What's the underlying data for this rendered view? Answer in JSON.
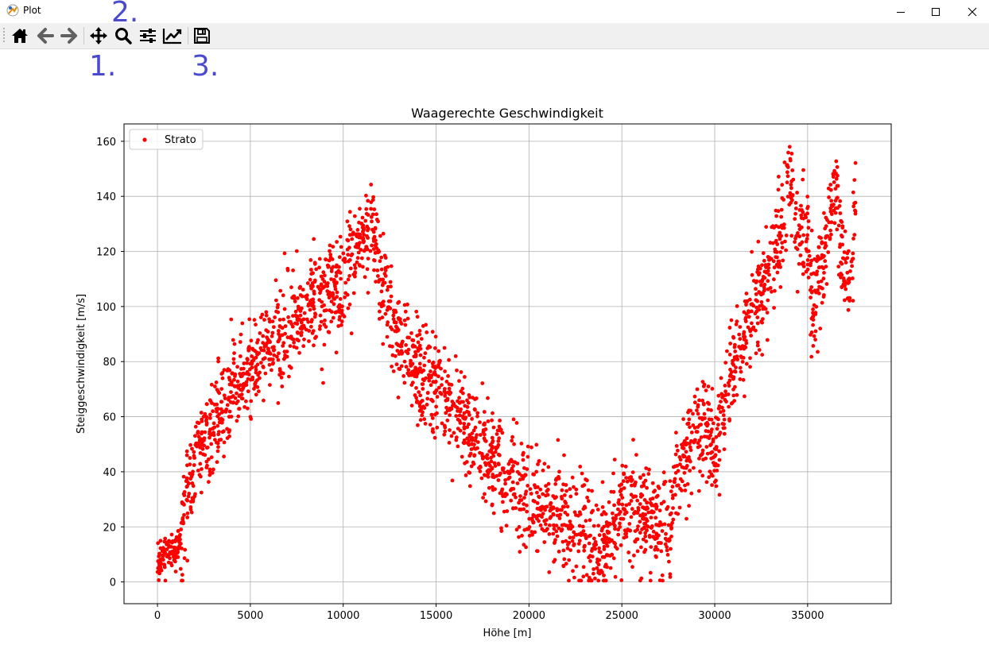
{
  "window": {
    "title": "Plot"
  },
  "toolbar": {
    "buttons": [
      {
        "name": "home-icon"
      },
      {
        "name": "back-arrow-icon"
      },
      {
        "name": "forward-arrow-icon"
      },
      {
        "name": "pan-move-icon"
      },
      {
        "name": "zoom-magnifier-icon"
      },
      {
        "name": "configure-subplots-icon"
      },
      {
        "name": "edit-axis-curve-icon"
      },
      {
        "name": "save-floppy-icon"
      }
    ]
  },
  "annotations": {
    "a1": "1.",
    "a2": "2.",
    "a3": "3."
  },
  "colors": {
    "marker": "#ff0000",
    "grid": "#b0b0b0",
    "annotation": "#4a4acf"
  },
  "chart_data": {
    "type": "scatter",
    "title": "Waagerechte Geschwindigkeit",
    "xlabel": "Höhe [m]",
    "ylabel": "Steiggeschwindigkeit [m/s]",
    "xlim": [
      -1800,
      39500
    ],
    "ylim": [
      -7.9,
      166.3
    ],
    "xticks": [
      0,
      5000,
      10000,
      15000,
      20000,
      25000,
      30000,
      35000
    ],
    "yticks": [
      0,
      20,
      40,
      60,
      80,
      100,
      120,
      140,
      160
    ],
    "grid": true,
    "legend": {
      "placement": "top-left",
      "entries": [
        "Strato"
      ]
    },
    "series": [
      {
        "name": "Strato",
        "color": "#ff0000",
        "trend_x": [
          0,
          300,
          600,
          1000,
          1300,
          1600,
          2000,
          2500,
          3000,
          3500,
          4000,
          5000,
          6000,
          7000,
          8000,
          9000,
          10000,
          11000,
          11500,
          12000,
          12500,
          13000,
          14000,
          15000,
          16000,
          17000,
          18000,
          19000,
          20000,
          21000,
          22000,
          22500,
          23000,
          23500,
          24000,
          25000,
          26000,
          27000,
          27500,
          28000,
          29000,
          29500,
          30000,
          30500,
          31000,
          32000,
          33000,
          33500,
          34000,
          34500,
          35000,
          35300,
          36000,
          36500,
          37000,
          37300,
          37600
        ],
        "trend_y": [
          5,
          11,
          12,
          11,
          16,
          33,
          42,
          50,
          57,
          63,
          68,
          77,
          85,
          92,
          99,
          103,
          107,
          123,
          128,
          112,
          98,
          88,
          76,
          70,
          63,
          52,
          45,
          38,
          30,
          25,
          22,
          20,
          15,
          12,
          15,
          28,
          25,
          22,
          18,
          38,
          52,
          60,
          45,
          65,
          78,
          95,
          115,
          125,
          148,
          122,
          125,
          97,
          125,
          145,
          110,
          108,
          135
        ],
        "spread_y": 9,
        "points_count": 2800,
        "range_x": [
          0,
          37600
        ],
        "range_y": [
          0.5,
          158
        ]
      }
    ]
  }
}
